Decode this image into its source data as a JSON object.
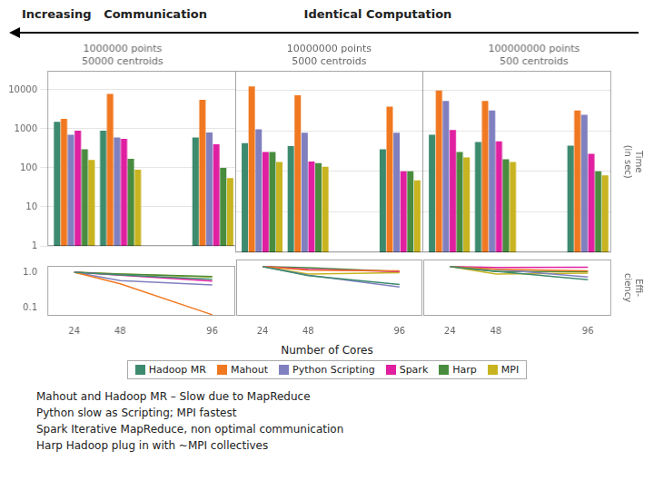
{
  "title": "Increasing   Communication",
  "subtitle": "Identical Computation",
  "xlabel": "Number of Cores",
  "legend": "bottom",
  "annotations": [
    "Mahout and Hadoop MR – Slow due to MapReduce",
    "Python slow as Scripting; MPI fastest",
    "Spark Iterative MapReduce, non optimal communication",
    "Harp Hadoop plug in with ~MPI collectives"
  ],
  "chart_data": [
    {
      "type": "bar",
      "title": "1000000 points\n50000 centroids",
      "x": [
        24,
        48,
        96
      ],
      "xlim": [
        10,
        108
      ],
      "xticks": [],
      "log": "y",
      "ylim": [
        1,
        30000
      ],
      "yticks": [
        1,
        10,
        100,
        1000,
        10000
      ],
      "grid": true,
      "tick_labels": "y",
      "series": [
        {
          "name": "Hadoop MR",
          "color": "#3d8b6e",
          "values": [
            1500,
            900,
            600
          ]
        },
        {
          "name": "Mahout",
          "color": "#f07820",
          "values": [
            1800,
            7800,
            5500
          ]
        },
        {
          "name": "Python Scripting",
          "color": "#8080c0",
          "values": [
            700,
            600,
            800
          ]
        },
        {
          "name": "Spark",
          "color": "#e020a0",
          "values": [
            900,
            550,
            400
          ]
        },
        {
          "name": "Harp",
          "color": "#4a8c3f",
          "values": [
            300,
            170,
            100
          ]
        },
        {
          "name": "MPI",
          "color": "#c8b420",
          "values": [
            160,
            90,
            55
          ]
        }
      ]
    },
    {
      "type": "bar",
      "title": "10000000 points\n5000 centroids",
      "x": [
        24,
        48,
        96
      ],
      "xlim": [
        10,
        108
      ],
      "xticks": [],
      "log": "y",
      "ylim": [
        1,
        30000
      ],
      "yticks": [
        1,
        10,
        100,
        1000,
        10000
      ],
      "grid": true,
      "tick_labels": false,
      "series": [
        {
          "name": "Hadoop MR",
          "color": "#3d8b6e",
          "values": [
            500,
            420,
            350
          ]
        },
        {
          "name": "Mahout",
          "color": "#f07820",
          "values": [
            12500,
            7600,
            4000
          ]
        },
        {
          "name": "Python Scripting",
          "color": "#8080c0",
          "values": [
            1100,
            900,
            900
          ]
        },
        {
          "name": "Spark",
          "color": "#e020a0",
          "values": [
            300,
            175,
            100
          ]
        },
        {
          "name": "Harp",
          "color": "#4a8c3f",
          "values": [
            300,
            160,
            100
          ]
        },
        {
          "name": "MPI",
          "color": "#c8b420",
          "values": [
            170,
            130,
            60
          ]
        }
      ]
    },
    {
      "type": "bar",
      "title": "100000000 points\n500 centroids",
      "ylabel": "Time\n(in sec)",
      "x": [
        24,
        48,
        96
      ],
      "xlim": [
        10,
        108
      ],
      "xticks": [],
      "log": "y",
      "ylim": [
        1,
        30000
      ],
      "yticks": [
        1,
        10,
        100,
        1000,
        10000
      ],
      "grid": true,
      "tick_labels": false,
      "series": [
        {
          "name": "Hadoop MR",
          "color": "#3d8b6e",
          "values": [
            800,
            530,
            430
          ]
        },
        {
          "name": "Mahout",
          "color": "#f07820",
          "values": [
            10000,
            5500,
            3200
          ]
        },
        {
          "name": "Python Scripting",
          "color": "#8080c0",
          "values": [
            5500,
            3200,
            2500
          ]
        },
        {
          "name": "Spark",
          "color": "#e020a0",
          "values": [
            1050,
            550,
            270
          ]
        },
        {
          "name": "Harp",
          "color": "#4a8c3f",
          "values": [
            300,
            200,
            100
          ]
        },
        {
          "name": "MPI",
          "color": "#c8b420",
          "values": [
            220,
            170,
            80
          ]
        }
      ]
    },
    {
      "type": "line",
      "x": [
        24,
        48,
        96
      ],
      "xlim": [
        10,
        108
      ],
      "xticks": [
        24,
        48,
        96
      ],
      "log": "y",
      "ylim": [
        0.06,
        1.5
      ],
      "yticks": [
        0.1,
        {
          "value": 1,
          "label": "1.0"
        }
      ],
      "grid": false,
      "marker": "none",
      "series": [
        {
          "name": "Hadoop MR",
          "color": "#3d8b6e",
          "values": [
            1.0,
            0.83,
            0.63
          ]
        },
        {
          "name": "Mahout",
          "color": "#f07820",
          "values": [
            1.0,
            0.47,
            0.064
          ]
        },
        {
          "name": "Python Scripting",
          "color": "#8080c0",
          "values": [
            1.0,
            0.58,
            0.44
          ]
        },
        {
          "name": "Spark",
          "color": "#e020a0",
          "values": [
            1.0,
            0.82,
            0.56
          ]
        },
        {
          "name": "Harp",
          "color": "#4a8c3f",
          "values": [
            1.0,
            0.88,
            0.75
          ]
        },
        {
          "name": "MPI",
          "color": "#c8b420",
          "values": [
            1.0,
            0.89,
            0.73
          ]
        }
      ]
    },
    {
      "type": "line",
      "x": [
        24,
        48,
        96
      ],
      "xlim": [
        10,
        108
      ],
      "xticks": [
        24,
        48,
        96
      ],
      "log": "y",
      "ylim": [
        0.06,
        1.5
      ],
      "yticks": [
        0.1,
        {
          "value": 1,
          "label": "1.0"
        }
      ],
      "grid": false,
      "marker": "none",
      "tick_labels": "x",
      "series": [
        {
          "name": "Hadoop MR",
          "color": "#3d8b6e",
          "values": [
            1.0,
            0.6,
            0.36
          ]
        },
        {
          "name": "Mahout",
          "color": "#f07820",
          "values": [
            1.0,
            0.82,
            0.78
          ]
        },
        {
          "name": "Python Scripting",
          "color": "#8080c0",
          "values": [
            1.0,
            0.61,
            0.31
          ]
        },
        {
          "name": "Spark",
          "color": "#e020a0",
          "values": [
            1.0,
            0.86,
            0.75
          ]
        },
        {
          "name": "Harp",
          "color": "#4a8c3f",
          "values": [
            1.0,
            0.94,
            0.75
          ]
        },
        {
          "name": "MPI",
          "color": "#c8b420",
          "values": [
            1.0,
            0.65,
            0.71
          ]
        }
      ]
    },
    {
      "type": "line",
      "ylabel": "Effi-\nciency",
      "x": [
        24,
        48,
        96
      ],
      "xlim": [
        10,
        108
      ],
      "xticks": [
        24,
        48,
        96
      ],
      "log": "y",
      "ylim": [
        0.06,
        1.5
      ],
      "yticks": [
        0.1,
        {
          "value": 1,
          "label": "1.0"
        }
      ],
      "grid": false,
      "marker": "none",
      "tick_labels": "x",
      "series": [
        {
          "name": "Hadoop MR",
          "color": "#3d8b6e",
          "values": [
            1.0,
            0.76,
            0.47
          ]
        },
        {
          "name": "Mahout",
          "color": "#f07820",
          "values": [
            1.0,
            0.86,
            0.78
          ]
        },
        {
          "name": "Python Scripting",
          "color": "#8080c0",
          "values": [
            1.0,
            0.86,
            0.55
          ]
        },
        {
          "name": "Spark",
          "color": "#e020a0",
          "values": [
            1.0,
            0.95,
            0.97
          ]
        },
        {
          "name": "Harp",
          "color": "#4a8c3f",
          "values": [
            1.0,
            0.75,
            0.75
          ]
        },
        {
          "name": "MPI",
          "color": "#c8b420",
          "values": [
            1.0,
            0.65,
            0.69
          ]
        }
      ]
    }
  ]
}
